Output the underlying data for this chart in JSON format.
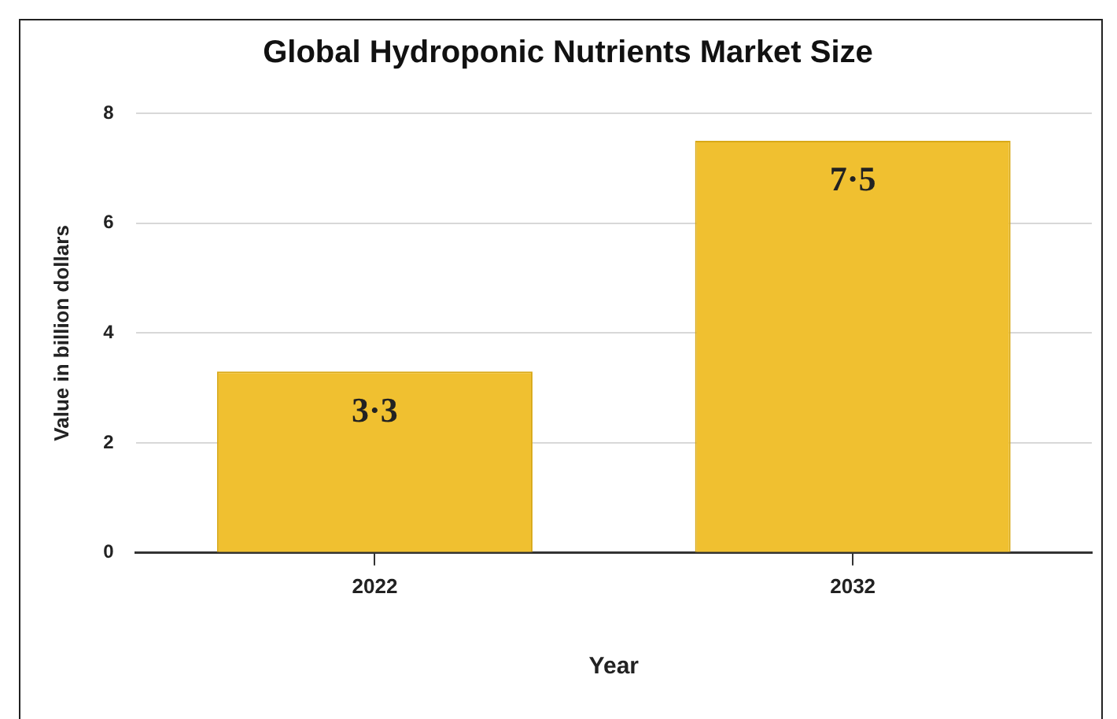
{
  "chart_data": {
    "type": "bar",
    "title": "Global Hydroponic Nutrients Market Size",
    "xlabel": "Year",
    "ylabel": "Value in billion dollars",
    "categories": [
      "2022",
      "2032"
    ],
    "values": [
      3.3,
      7.5
    ],
    "color": "#f0c030",
    "value_labels": [
      "3·3",
      "7·5"
    ],
    "ylim": [
      0,
      8
    ],
    "yticks": [
      0,
      2,
      4,
      6,
      8
    ],
    "grid": "y",
    "legend": false
  }
}
